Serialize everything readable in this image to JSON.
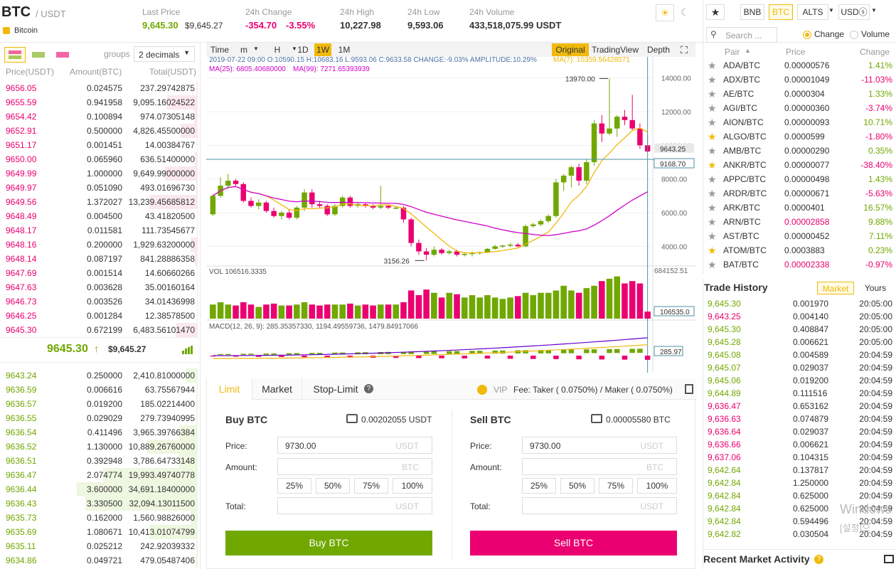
{
  "header": {
    "symbol": "BTC",
    "quote": "/ USDT",
    "coin_name": "Bitcoin",
    "last_price_label": "Last Price",
    "last_price": "9,645.30",
    "last_price_usd": "$9,645.27",
    "change_label": "24h Change",
    "change": "-354.70",
    "change_pct": "-3.55%",
    "high_label": "24h High",
    "high": "10,227.98",
    "low_label": "24h Low",
    "low": "9,593.06",
    "volume_label": "24h Volume",
    "volume": "433,518,075.99 USDT"
  },
  "orderbook": {
    "groups_label": "groups",
    "groups_value": "2 decimals",
    "headers": [
      "Price(USDT)",
      "Amount(BTC)",
      "Total(USDT)"
    ],
    "asks": [
      [
        "9656.05",
        "0.024575",
        "237.29742875",
        0.02
      ],
      [
        "9655.59",
        "0.941958",
        "9,095.16024522",
        0.36
      ],
      [
        "9654.42",
        "0.100894",
        "974.07305148",
        0.04
      ],
      [
        "9652.91",
        "0.500000",
        "4,826.45500000",
        0.2
      ],
      [
        "9651.17",
        "0.001451",
        "14.00384767",
        0.01
      ],
      [
        "9650.00",
        "0.065960",
        "636.51400000",
        0.03
      ],
      [
        "9649.99",
        "1.000000",
        "9,649.99000000",
        0.38
      ],
      [
        "9649.97",
        "0.051090",
        "493.01696730",
        0.02
      ],
      [
        "9649.56",
        "1.372027",
        "13,239.45685812",
        0.57
      ],
      [
        "9648.49",
        "0.004500",
        "43.41820500",
        0.01
      ],
      [
        "9648.17",
        "0.011581",
        "111.73545677",
        0.01
      ],
      [
        "9648.16",
        "0.200000",
        "1,929.63200000",
        0.08
      ],
      [
        "9648.14",
        "0.087197",
        "841.28886358",
        0.03
      ],
      [
        "9647.69",
        "0.001514",
        "14.60660266",
        0.01
      ],
      [
        "9647.63",
        "0.003628",
        "35.00160164",
        0.01
      ],
      [
        "9646.73",
        "0.003526",
        "34.01436998",
        0.01
      ],
      [
        "9646.25",
        "0.001284",
        "12.38578500",
        0.01
      ],
      [
        "9645.30",
        "0.672199",
        "6,483.56101470",
        0.26
      ]
    ],
    "mid_price": "9645.30",
    "mid_usd": "$9,645.27",
    "bids": [
      [
        "9643.24",
        "0.250000",
        "2,410.81000000",
        0.1
      ],
      [
        "9636.59",
        "0.006616",
        "63.75567944",
        0.01
      ],
      [
        "9636.57",
        "0.019200",
        "185.02214400",
        0.01
      ],
      [
        "9636.55",
        "0.029029",
        "279.73940995",
        0.01
      ],
      [
        "9636.54",
        "0.411496",
        "3,965.39766384",
        0.15
      ],
      [
        "9636.52",
        "1.130000",
        "10,889.26760000",
        0.42
      ],
      [
        "9636.51",
        "0.392948",
        "3,786.64733148",
        0.15
      ],
      [
        "9636.47",
        "2.074774",
        "19,993.49740778",
        0.78
      ],
      [
        "9636.44",
        "3.600000",
        "34,691.18400000",
        1.0
      ],
      [
        "9636.43",
        "3.330500",
        "32,094.13011500",
        0.93
      ],
      [
        "9635.73",
        "0.162000",
        "1,560.98826000",
        0.06
      ],
      [
        "9635.69",
        "1.080671",
        "10,413.01074799",
        0.4
      ],
      [
        "9635.11",
        "0.025212",
        "242.92039332",
        0.01
      ],
      [
        "9634.86",
        "0.049721",
        "479.05487406",
        0.02
      ]
    ]
  },
  "chart": {
    "toolbar": [
      "Time",
      "m",
      "H",
      "1D",
      "1W",
      "1M"
    ],
    "active": "1W",
    "views": [
      "Original",
      "TradingView",
      "Depth"
    ],
    "info1": "2019-07-22 09:00  O:10590.15 H:10683.16 L:9593.06 C:9633.58 CHANGE:-9.03% AMPLITUDE:10.29%",
    "ma7": "MA(7): 10359.56428571",
    "ma25": "MA(25): 6805.40680000",
    "ma99": "MA(99): 7271.65393939",
    "price_ticks": [
      "14000.00",
      "12000.00",
      "10000.00",
      "8000.00",
      "6000.00",
      "4000.00"
    ],
    "high_note": "13970.00",
    "low_note": "3156.26",
    "tag_cur": "9643.25",
    "tag_line": "9168.70",
    "vol_label": "VOL 106516.3335",
    "vol_max": "684152.51",
    "vol_tag": "106535.0",
    "macd_label": "MACD(12, 26, 9): 285.35357330, 1194.49559736, 1479.84917066",
    "macd_tag": "285.97"
  },
  "chart_data": {
    "type": "candlestick",
    "title": "",
    "candles": [
      [
        5900,
        7100,
        5800,
        7000
      ],
      [
        7000,
        8100,
        6900,
        7600
      ],
      [
        7600,
        8300,
        7400,
        7900
      ],
      [
        7900,
        8000,
        7600,
        7700
      ],
      [
        7700,
        7800,
        6600,
        6700
      ],
      [
        6700,
        6900,
        6300,
        6400
      ],
      [
        6400,
        6800,
        6200,
        6600
      ],
      [
        6600,
        6700,
        6000,
        6100
      ],
      [
        6100,
        6300,
        5700,
        5800
      ],
      [
        5800,
        6100,
        5600,
        6000
      ],
      [
        6000,
        6200,
        5600,
        5700
      ],
      [
        5700,
        6400,
        5600,
        6300
      ],
      [
        6300,
        7400,
        6100,
        7200
      ],
      [
        7200,
        7400,
        6300,
        6500
      ],
      [
        6500,
        6700,
        6300,
        6400
      ],
      [
        6400,
        6500,
        5800,
        5900
      ],
      [
        5900,
        6500,
        5800,
        6400
      ],
      [
        6400,
        7000,
        6300,
        6900
      ],
      [
        6900,
        7000,
        6300,
        6400
      ],
      [
        6400,
        6600,
        6300,
        6500
      ],
      [
        6500,
        6600,
        6300,
        6400
      ],
      [
        6400,
        6500,
        6200,
        6300
      ],
      [
        6300,
        7600,
        6200,
        6400
      ],
      [
        6400,
        6500,
        6200,
        6300
      ],
      [
        6300,
        6400,
        6200,
        6300
      ],
      [
        6300,
        6400,
        5400,
        5600
      ],
      [
        5600,
        5700,
        4000,
        4200
      ],
      [
        4200,
        4400,
        3500,
        3700
      ],
      [
        3700,
        3900,
        3156,
        3500
      ],
      [
        3500,
        4000,
        3400,
        3800
      ],
      [
        3800,
        3900,
        3500,
        3600
      ],
      [
        3600,
        3800,
        3500,
        3700
      ],
      [
        3700,
        3800,
        3400,
        3500
      ],
      [
        3500,
        3600,
        3400,
        3550
      ],
      [
        3550,
        3700,
        3400,
        3600
      ],
      [
        3600,
        3700,
        3500,
        3650
      ],
      [
        3650,
        3900,
        3600,
        3850
      ],
      [
        3850,
        4100,
        3800,
        4000
      ],
      [
        4000,
        4100,
        3900,
        4050
      ],
      [
        4050,
        4200,
        3950,
        4100
      ],
      [
        4100,
        4200,
        3950,
        4000
      ],
      [
        4000,
        5300,
        3950,
        5200
      ],
      [
        5200,
        5400,
        5100,
        5300
      ],
      [
        5300,
        5600,
        5200,
        5500
      ],
      [
        5500,
        5900,
        5400,
        5800
      ],
      [
        5800,
        8000,
        5700,
        7800
      ],
      [
        7800,
        8300,
        7300,
        8200
      ],
      [
        8200,
        8800,
        7500,
        8700
      ],
      [
        8700,
        8900,
        7600,
        7900
      ],
      [
        7900,
        9200,
        7700,
        9000
      ],
      [
        9000,
        11500,
        8800,
        11300
      ],
      [
        11300,
        11800,
        10200,
        10700
      ],
      [
        10700,
        13970,
        10600,
        11000
      ],
      [
        11000,
        11800,
        10500,
        11700
      ],
      [
        11700,
        12100,
        11200,
        11500
      ],
      [
        11500,
        13000,
        10900,
        11000
      ],
      [
        11000,
        11300,
        9800,
        10000
      ],
      [
        10000,
        10683,
        9593,
        9633
      ]
    ],
    "volumes": [
      0.3,
      0.35,
      0.3,
      0.28,
      0.35,
      0.3,
      0.25,
      0.3,
      0.32,
      0.28,
      0.28,
      0.3,
      0.35,
      0.3,
      0.28,
      0.3,
      0.3,
      0.3,
      0.32,
      0.28,
      0.3,
      0.28,
      0.3,
      0.3,
      0.3,
      0.35,
      0.6,
      0.5,
      0.62,
      0.55,
      0.45,
      0.55,
      0.52,
      0.45,
      0.5,
      0.45,
      0.5,
      0.45,
      0.42,
      0.45,
      0.48,
      0.55,
      0.5,
      0.55,
      0.55,
      0.6,
      0.7,
      0.6,
      0.55,
      0.65,
      0.7,
      0.8,
      0.85,
      0.9,
      0.75,
      0.8,
      0.75,
      0.15
    ],
    "y_range": [
      3000,
      15000
    ]
  },
  "market": {
    "tabs": [
      "BNB",
      "BTC",
      "ALTS",
      "USDⓢ"
    ],
    "active": "BTC",
    "search_placeholder": "Search ...",
    "opt_change": "Change",
    "opt_volume": "Volume",
    "headers": [
      "Pair",
      "Price",
      "Change"
    ],
    "rows": [
      [
        "ADA/BTC",
        "0.00000576",
        "1.41%",
        "g",
        0
      ],
      [
        "ADX/BTC",
        "0.00001049",
        "-11.03%",
        "g",
        0
      ],
      [
        "AE/BTC",
        "0.0000304",
        "1.33%",
        "g",
        0
      ],
      [
        "AGI/BTC",
        "0.00000360",
        "-3.74%",
        "g",
        0
      ],
      [
        "AION/BTC",
        "0.00000093",
        "10.71%",
        "g",
        0
      ],
      [
        "ALGO/BTC",
        "0.0000599",
        "-1.80%",
        "g",
        1
      ],
      [
        "AMB/BTC",
        "0.00000290",
        "0.35%",
        "g",
        0
      ],
      [
        "ANKR/BTC",
        "0.00000077",
        "-38.40%",
        "g",
        1
      ],
      [
        "APPC/BTC",
        "0.00000498",
        "1.43%",
        "g",
        0
      ],
      [
        "ARDR/BTC",
        "0.00000671",
        "-5.63%",
        "g",
        0
      ],
      [
        "ARK/BTC",
        "0.0000401",
        "16.57%",
        "g",
        0
      ],
      [
        "ARN/BTC",
        "0.00002858",
        "9.88%",
        "r",
        0
      ],
      [
        "AST/BTC",
        "0.00000452",
        "7.11%",
        "g",
        0
      ],
      [
        "ATOM/BTC",
        "0.0003883",
        "0.23%",
        "g",
        1
      ],
      [
        "BAT/BTC",
        "0.00002338",
        "-0.97%",
        "r",
        0
      ]
    ]
  },
  "trades": {
    "title": "Trade History",
    "tab_market": "Market",
    "tab_yours": "Yours",
    "rows": [
      [
        "9,645.30",
        "0.001970",
        "20:05:00",
        "g"
      ],
      [
        "9,643.25",
        "0.004140",
        "20:05:00",
        "r"
      ],
      [
        "9,645.30",
        "0.408847",
        "20:05:00",
        "g"
      ],
      [
        "9,645.28",
        "0.006621",
        "20:05:00",
        "g"
      ],
      [
        "9,645.08",
        "0.004589",
        "20:04:59",
        "g"
      ],
      [
        "9,645.07",
        "0.029037",
        "20:04:59",
        "g"
      ],
      [
        "9,645.06",
        "0.019200",
        "20:04:59",
        "g"
      ],
      [
        "9,644.89",
        "0.111516",
        "20:04:59",
        "g"
      ],
      [
        "9,636.47",
        "0.653162",
        "20:04:59",
        "r"
      ],
      [
        "9,636.63",
        "0.074879",
        "20:04:59",
        "r"
      ],
      [
        "9,636.64",
        "0.029037",
        "20:04:59",
        "r"
      ],
      [
        "9,636.66",
        "0.006621",
        "20:04:59",
        "r"
      ],
      [
        "9,637.06",
        "0.104315",
        "20:04:59",
        "r"
      ],
      [
        "9,642.64",
        "0.137817",
        "20:04:59",
        "g"
      ],
      [
        "9,642.84",
        "1.250000",
        "20:04:59",
        "g"
      ],
      [
        "9,642.84",
        "0.625000",
        "20:04:59",
        "g"
      ],
      [
        "9,642.84",
        "0.625000",
        "20:04:59",
        "g"
      ],
      [
        "9,642.84",
        "0.594496",
        "20:04:59",
        "g"
      ],
      [
        "9,642.82",
        "0.030504",
        "20:04:59",
        "g"
      ]
    ],
    "recent": "Recent Market Activity"
  },
  "form": {
    "tabs": [
      "Limit",
      "Market",
      "Stop-Limit"
    ],
    "vip": "VIP",
    "fee": "Fee: Taker ( 0.0750%) / Maker ( 0.0750%)",
    "buy": {
      "title": "Buy BTC",
      "balance": "0.00202055 USDT",
      "price_label": "Price:",
      "price": "9730.00",
      "price_unit": "USDT",
      "amount_label": "Amount:",
      "amount_unit": "BTC",
      "total_label": "Total:",
      "total_unit": "USDT",
      "button": "Buy BTC"
    },
    "sell": {
      "title": "Sell BTC",
      "balance": "0.00005580 BTC",
      "price_label": "Price:",
      "price": "9730.00",
      "price_unit": "USDT",
      "amount_label": "Amount:",
      "amount_unit": "BTC",
      "total_label": "Total:",
      "total_unit": "USDT",
      "button": "Sell BTC"
    },
    "pcts": [
      "25%",
      "50%",
      "75%",
      "100%"
    ]
  },
  "watermark": {
    "line1": "Windows",
    "line2": "[설정]으"
  },
  "colors": {
    "buy": "#70a800",
    "sell": "#ea0070",
    "accent": "#f0b90b"
  }
}
